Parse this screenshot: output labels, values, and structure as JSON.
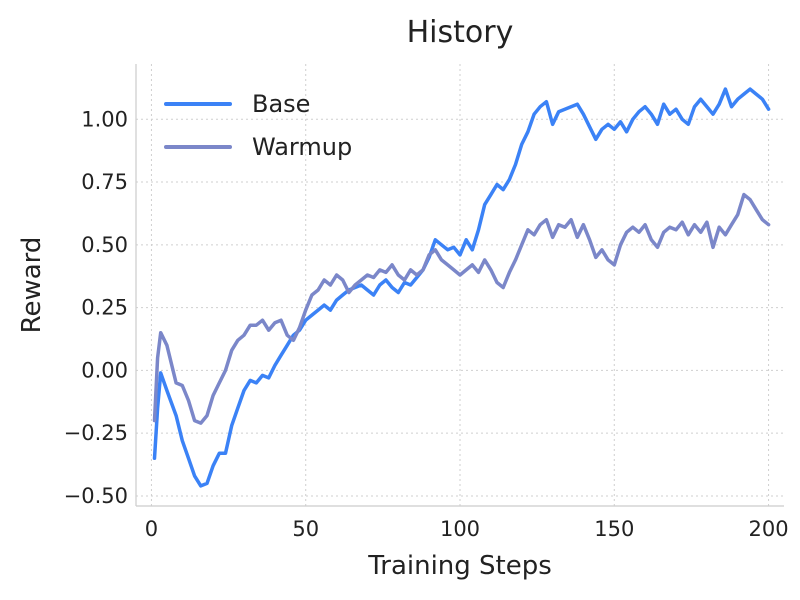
{
  "chart_data": {
    "type": "line",
    "title": "History",
    "xlabel": "Training Steps",
    "ylabel": "Reward",
    "xlim": [
      -5,
      205
    ],
    "ylim": [
      -0.54,
      1.22
    ],
    "xticks": [
      0,
      50,
      100,
      150,
      200
    ],
    "xtick_labels": [
      "0",
      "50",
      "100",
      "150",
      "200"
    ],
    "yticks": [
      -0.5,
      -0.25,
      0.0,
      0.25,
      0.5,
      0.75,
      1.0
    ],
    "ytick_labels": [
      "−0.50",
      "−0.25",
      "0.00",
      "0.25",
      "0.50",
      "0.75",
      "1.00"
    ],
    "grid": true,
    "legend_position": "top-left",
    "series": [
      {
        "name": "Base",
        "color": "#3b82f6",
        "points": [
          [
            1,
            -0.35
          ],
          [
            2,
            -0.15
          ],
          [
            3,
            -0.01
          ],
          [
            5,
            -0.08
          ],
          [
            8,
            -0.18
          ],
          [
            10,
            -0.28
          ],
          [
            12,
            -0.35
          ],
          [
            14,
            -0.42
          ],
          [
            16,
            -0.46
          ],
          [
            18,
            -0.45
          ],
          [
            20,
            -0.38
          ],
          [
            22,
            -0.33
          ],
          [
            24,
            -0.33
          ],
          [
            26,
            -0.22
          ],
          [
            28,
            -0.15
          ],
          [
            30,
            -0.08
          ],
          [
            32,
            -0.04
          ],
          [
            34,
            -0.05
          ],
          [
            36,
            -0.02
          ],
          [
            38,
            -0.03
          ],
          [
            40,
            0.02
          ],
          [
            42,
            0.06
          ],
          [
            44,
            0.1
          ],
          [
            46,
            0.14
          ],
          [
            48,
            0.16
          ],
          [
            50,
            0.2
          ],
          [
            52,
            0.22
          ],
          [
            54,
            0.24
          ],
          [
            56,
            0.26
          ],
          [
            58,
            0.24
          ],
          [
            60,
            0.28
          ],
          [
            62,
            0.3
          ],
          [
            64,
            0.32
          ],
          [
            66,
            0.33
          ],
          [
            68,
            0.34
          ],
          [
            70,
            0.32
          ],
          [
            72,
            0.3
          ],
          [
            74,
            0.34
          ],
          [
            76,
            0.36
          ],
          [
            78,
            0.33
          ],
          [
            80,
            0.31
          ],
          [
            82,
            0.35
          ],
          [
            84,
            0.34
          ],
          [
            86,
            0.37
          ],
          [
            88,
            0.4
          ],
          [
            90,
            0.45
          ],
          [
            92,
            0.52
          ],
          [
            94,
            0.5
          ],
          [
            96,
            0.48
          ],
          [
            98,
            0.49
          ],
          [
            100,
            0.46
          ],
          [
            102,
            0.52
          ],
          [
            104,
            0.48
          ],
          [
            106,
            0.56
          ],
          [
            108,
            0.66
          ],
          [
            110,
            0.7
          ],
          [
            112,
            0.74
          ],
          [
            114,
            0.72
          ],
          [
            116,
            0.76
          ],
          [
            118,
            0.82
          ],
          [
            120,
            0.9
          ],
          [
            122,
            0.95
          ],
          [
            124,
            1.02
          ],
          [
            126,
            1.05
          ],
          [
            128,
            1.07
          ],
          [
            130,
            0.98
          ],
          [
            132,
            1.03
          ],
          [
            134,
            1.04
          ],
          [
            136,
            1.05
          ],
          [
            138,
            1.06
          ],
          [
            140,
            1.02
          ],
          [
            142,
            0.97
          ],
          [
            144,
            0.92
          ],
          [
            146,
            0.96
          ],
          [
            148,
            0.98
          ],
          [
            150,
            0.96
          ],
          [
            152,
            0.99
          ],
          [
            154,
            0.95
          ],
          [
            156,
            1.0
          ],
          [
            158,
            1.03
          ],
          [
            160,
            1.05
          ],
          [
            162,
            1.02
          ],
          [
            164,
            0.98
          ],
          [
            166,
            1.06
          ],
          [
            168,
            1.02
          ],
          [
            170,
            1.04
          ],
          [
            172,
            1.0
          ],
          [
            174,
            0.98
          ],
          [
            176,
            1.05
          ],
          [
            178,
            1.08
          ],
          [
            180,
            1.05
          ],
          [
            182,
            1.02
          ],
          [
            184,
            1.06
          ],
          [
            186,
            1.12
          ],
          [
            188,
            1.05
          ],
          [
            190,
            1.08
          ],
          [
            192,
            1.1
          ],
          [
            194,
            1.12
          ],
          [
            196,
            1.1
          ],
          [
            198,
            1.08
          ],
          [
            200,
            1.04
          ]
        ]
      },
      {
        "name": "Warmup",
        "color": "#7b87c9",
        "points": [
          [
            1,
            -0.2
          ],
          [
            2,
            0.05
          ],
          [
            3,
            0.15
          ],
          [
            5,
            0.1
          ],
          [
            8,
            -0.05
          ],
          [
            10,
            -0.06
          ],
          [
            12,
            -0.12
          ],
          [
            14,
            -0.2
          ],
          [
            16,
            -0.21
          ],
          [
            18,
            -0.18
          ],
          [
            20,
            -0.1
          ],
          [
            22,
            -0.05
          ],
          [
            24,
            0.0
          ],
          [
            26,
            0.08
          ],
          [
            28,
            0.12
          ],
          [
            30,
            0.14
          ],
          [
            32,
            0.18
          ],
          [
            34,
            0.18
          ],
          [
            36,
            0.2
          ],
          [
            38,
            0.16
          ],
          [
            40,
            0.19
          ],
          [
            42,
            0.2
          ],
          [
            44,
            0.14
          ],
          [
            46,
            0.12
          ],
          [
            48,
            0.17
          ],
          [
            50,
            0.24
          ],
          [
            52,
            0.3
          ],
          [
            54,
            0.32
          ],
          [
            56,
            0.36
          ],
          [
            58,
            0.34
          ],
          [
            60,
            0.38
          ],
          [
            62,
            0.36
          ],
          [
            64,
            0.31
          ],
          [
            66,
            0.34
          ],
          [
            68,
            0.36
          ],
          [
            70,
            0.38
          ],
          [
            72,
            0.37
          ],
          [
            74,
            0.4
          ],
          [
            76,
            0.39
          ],
          [
            78,
            0.42
          ],
          [
            80,
            0.38
          ],
          [
            82,
            0.36
          ],
          [
            84,
            0.4
          ],
          [
            86,
            0.38
          ],
          [
            88,
            0.4
          ],
          [
            90,
            0.46
          ],
          [
            92,
            0.48
          ],
          [
            94,
            0.44
          ],
          [
            96,
            0.42
          ],
          [
            98,
            0.4
          ],
          [
            100,
            0.38
          ],
          [
            102,
            0.4
          ],
          [
            104,
            0.42
          ],
          [
            106,
            0.39
          ],
          [
            108,
            0.44
          ],
          [
            110,
            0.4
          ],
          [
            112,
            0.35
          ],
          [
            114,
            0.33
          ],
          [
            116,
            0.39
          ],
          [
            118,
            0.44
          ],
          [
            120,
            0.5
          ],
          [
            122,
            0.56
          ],
          [
            124,
            0.54
          ],
          [
            126,
            0.58
          ],
          [
            128,
            0.6
          ],
          [
            130,
            0.53
          ],
          [
            132,
            0.58
          ],
          [
            134,
            0.57
          ],
          [
            136,
            0.6
          ],
          [
            138,
            0.53
          ],
          [
            140,
            0.58
          ],
          [
            142,
            0.52
          ],
          [
            144,
            0.45
          ],
          [
            146,
            0.48
          ],
          [
            148,
            0.44
          ],
          [
            150,
            0.42
          ],
          [
            152,
            0.5
          ],
          [
            154,
            0.55
          ],
          [
            156,
            0.57
          ],
          [
            158,
            0.55
          ],
          [
            160,
            0.58
          ],
          [
            162,
            0.52
          ],
          [
            164,
            0.49
          ],
          [
            166,
            0.55
          ],
          [
            168,
            0.57
          ],
          [
            170,
            0.56
          ],
          [
            172,
            0.59
          ],
          [
            174,
            0.54
          ],
          [
            176,
            0.58
          ],
          [
            178,
            0.55
          ],
          [
            180,
            0.59
          ],
          [
            182,
            0.49
          ],
          [
            184,
            0.57
          ],
          [
            186,
            0.54
          ],
          [
            188,
            0.58
          ],
          [
            190,
            0.62
          ],
          [
            192,
            0.7
          ],
          [
            194,
            0.68
          ],
          [
            196,
            0.64
          ],
          [
            198,
            0.6
          ],
          [
            200,
            0.58
          ]
        ]
      }
    ]
  }
}
